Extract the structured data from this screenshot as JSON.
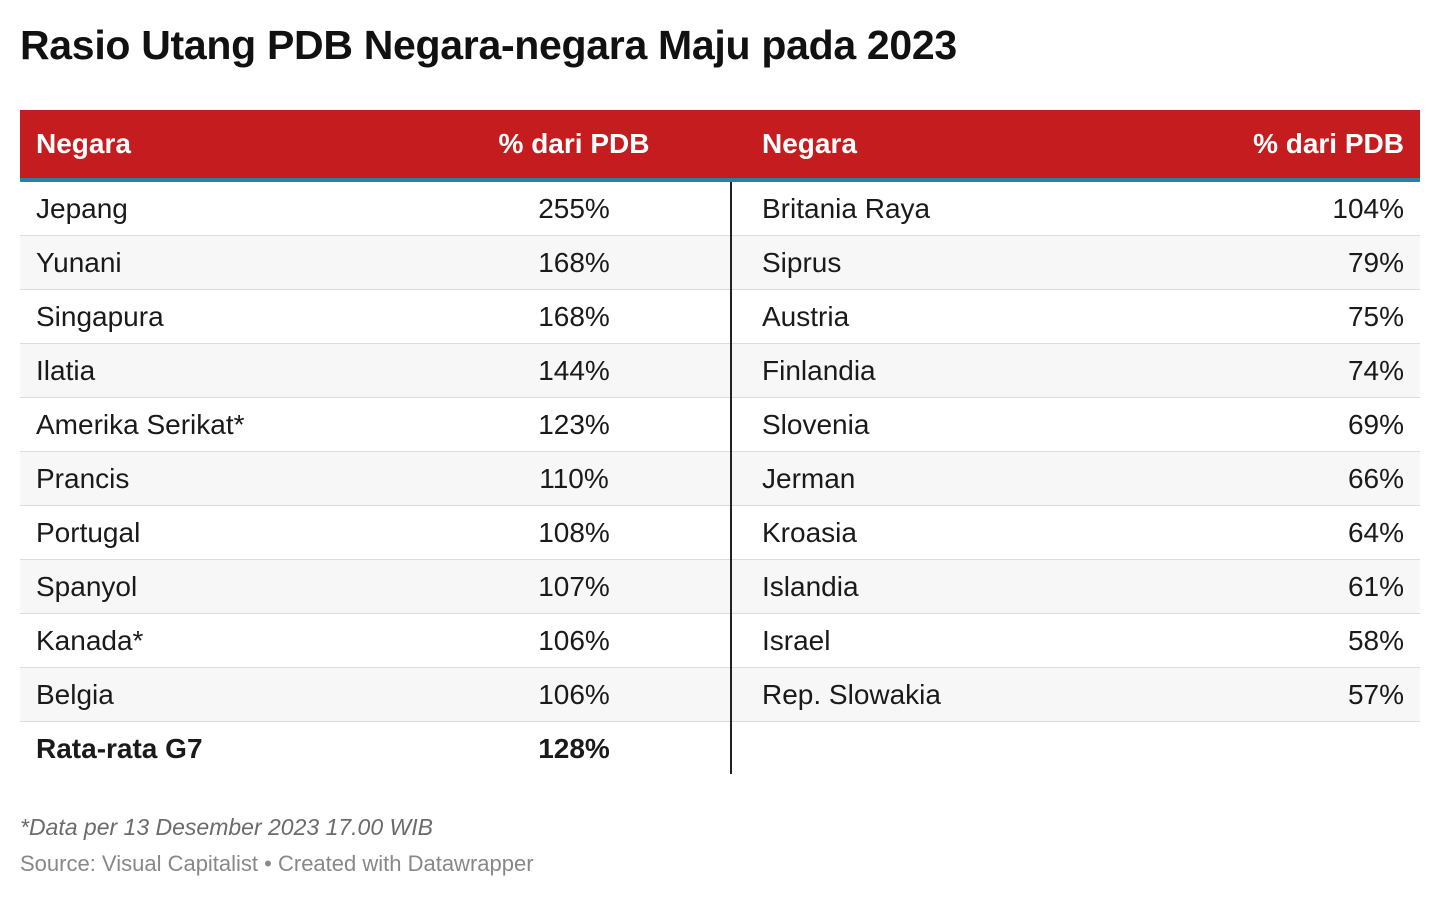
{
  "title": "Rasio Utang PDB Negara-negara Maju pada 2023",
  "header": {
    "col1": "Negara",
    "col2": "% dari PDB",
    "col3": "Negara",
    "col4": "% dari PDB"
  },
  "rows": [
    {
      "country_left": "Jepang",
      "value_left": "255%",
      "country_right": "Britania Raya",
      "value_right": "104%"
    },
    {
      "country_left": "Yunani",
      "value_left": "168%",
      "country_right": "Siprus",
      "value_right": "79%"
    },
    {
      "country_left": "Singapura",
      "value_left": "168%",
      "country_right": "Austria",
      "value_right": "75%"
    },
    {
      "country_left": "Ilatia",
      "value_left": "144%",
      "country_right": "Finlandia",
      "value_right": "74%"
    },
    {
      "country_left": "Amerika Serikat*",
      "value_left": "123%",
      "country_right": "Slovenia",
      "value_right": "69%"
    },
    {
      "country_left": "Prancis",
      "value_left": "110%",
      "country_right": "Jerman",
      "value_right": "66%"
    },
    {
      "country_left": "Portugal",
      "value_left": "108%",
      "country_right": "Kroasia",
      "value_right": "64%"
    },
    {
      "country_left": "Spanyol",
      "value_left": "107%",
      "country_right": "Islandia",
      "value_right": "61%"
    },
    {
      "country_left": "Kanada*",
      "value_left": "106%",
      "country_right": "Israel",
      "value_right": "58%"
    },
    {
      "country_left": "Belgia",
      "value_left": "106%",
      "country_right": "Rep. Slowakia",
      "value_right": "57%"
    }
  ],
  "average": {
    "label": "Rata-rata G7",
    "value": "128%"
  },
  "note": "*Data per 13 Desember 2023 17.00 WIB",
  "source": "Source: Visual Capitalist • Created with Datawrapper",
  "colors": {
    "header_bg": "#c41c1f",
    "header_underline": "#2c7fa6",
    "row_alt": "#f7f7f7"
  },
  "chart_data": {
    "type": "table",
    "title": "Rasio Utang PDB Negara-negara Maju pada 2023",
    "columns": [
      "Negara",
      "% dari PDB"
    ],
    "data": [
      {
        "Negara": "Jepang",
        "% dari PDB": 255
      },
      {
        "Negara": "Yunani",
        "% dari PDB": 168
      },
      {
        "Negara": "Singapura",
        "% dari PDB": 168
      },
      {
        "Negara": "Ilatia",
        "% dari PDB": 144
      },
      {
        "Negara": "Amerika Serikat*",
        "% dari PDB": 123
      },
      {
        "Negara": "Prancis",
        "% dari PDB": 110
      },
      {
        "Negara": "Portugal",
        "% dari PDB": 108
      },
      {
        "Negara": "Spanyol",
        "% dari PDB": 107
      },
      {
        "Negara": "Kanada*",
        "% dari PDB": 106
      },
      {
        "Negara": "Belgia",
        "% dari PDB": 106
      },
      {
        "Negara": "Britania Raya",
        "% dari PDB": 104
      },
      {
        "Negara": "Siprus",
        "% dari PDB": 79
      },
      {
        "Negara": "Austria",
        "% dari PDB": 75
      },
      {
        "Negara": "Finlandia",
        "% dari PDB": 74
      },
      {
        "Negara": "Slovenia",
        "% dari PDB": 69
      },
      {
        "Negara": "Jerman",
        "% dari PDB": 66
      },
      {
        "Negara": "Kroasia",
        "% dari PDB": 64
      },
      {
        "Negara": "Islandia",
        "% dari PDB": 61
      },
      {
        "Negara": "Israel",
        "% dari PDB": 58
      },
      {
        "Negara": "Rep. Slowakia",
        "% dari PDB": 57
      }
    ],
    "summary": {
      "Negara": "Rata-rata G7",
      "% dari PDB": 128
    }
  }
}
